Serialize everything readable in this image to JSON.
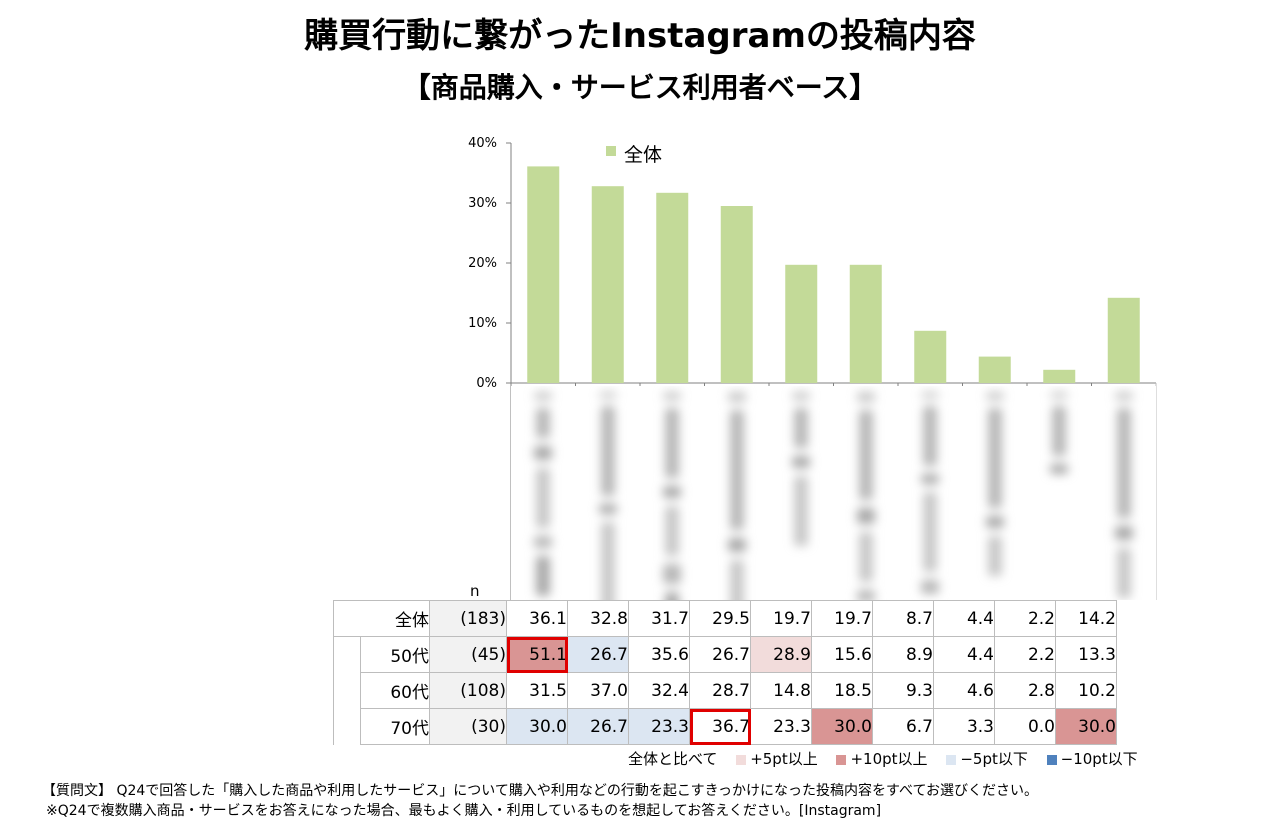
{
  "title": "購買行動に繋がったInstagramの投稿内容",
  "subtitle": "【商品購入・サービス利用者ベース】",
  "chart_data": {
    "type": "bar",
    "categories": [
      "",
      "",
      "",
      "",
      "",
      "",
      "",
      "",
      "",
      ""
    ],
    "series": [
      {
        "name": "全体",
        "values": [
          36.1,
          32.8,
          31.7,
          29.5,
          19.7,
          19.7,
          8.7,
          4.4,
          2.2,
          14.2
        ]
      }
    ],
    "ylim": [
      0,
      40
    ],
    "yticks": [
      "0%",
      "10%",
      "20%",
      "30%",
      "40%"
    ],
    "legend": "top",
    "bar_color": "#c3da98",
    "grid": false
  },
  "table": {
    "n_header": "n",
    "rows": [
      {
        "label": "全体",
        "n": "(183)",
        "values": [
          "36.1",
          "32.8",
          "31.7",
          "29.5",
          "19.7",
          "19.7",
          "8.7",
          "4.4",
          "2.2",
          "14.2"
        ],
        "colors": [
          "",
          "",
          "",
          "",
          "",
          "",
          "",
          "",
          "",
          ""
        ],
        "highlight": [
          false,
          false,
          false,
          false,
          false,
          false,
          false,
          false,
          false,
          false
        ]
      },
      {
        "label": "50代",
        "n": "(45)",
        "values": [
          "51.1",
          "26.7",
          "35.6",
          "26.7",
          "28.9",
          "15.6",
          "8.9",
          "4.4",
          "2.2",
          "13.3"
        ],
        "colors": [
          "#d99594",
          "#dce6f2",
          "",
          "",
          "#f2dcdb",
          "",
          "",
          "",
          "",
          ""
        ],
        "highlight": [
          true,
          false,
          false,
          false,
          false,
          false,
          false,
          false,
          false,
          false
        ]
      },
      {
        "label": "60代",
        "n": "(108)",
        "values": [
          "31.5",
          "37.0",
          "32.4",
          "28.7",
          "14.8",
          "18.5",
          "9.3",
          "4.6",
          "2.8",
          "10.2"
        ],
        "colors": [
          "",
          "",
          "",
          "",
          "",
          "",
          "",
          "",
          "",
          ""
        ],
        "highlight": [
          false,
          false,
          false,
          false,
          false,
          false,
          false,
          false,
          false,
          false
        ]
      },
      {
        "label": "70代",
        "n": "(30)",
        "values": [
          "30.0",
          "26.7",
          "23.3",
          "36.7",
          "23.3",
          "30.0",
          "6.7",
          "3.3",
          "0.0",
          "30.0"
        ],
        "colors": [
          "#dce6f2",
          "#dce6f2",
          "#dce6f2",
          "",
          "",
          "#d99594",
          "",
          "",
          "",
          "#d99594"
        ],
        "highlight": [
          false,
          false,
          false,
          true,
          false,
          false,
          false,
          false,
          false,
          false
        ]
      }
    ]
  },
  "legend_row": {
    "intro": "全体と比べて",
    "items": [
      {
        "label": "+5pt以上",
        "color": "#f2dcdb"
      },
      {
        "label": "+10pt以上",
        "color": "#d99594"
      },
      {
        "label": "−5pt以下",
        "color": "#dce6f2"
      },
      {
        "label": "−10pt以下",
        "color": "#4f81bd"
      }
    ]
  },
  "notes": {
    "line1": "【質問文】 Q24で回答した「購入した商品や利用したサービス」について購入や利用などの行動を起こすきっかけになった投稿内容をすべてお選びください。",
    "line2": "※Q24で複数購入商品・サービスをお答えになった場合、最もよく購入・利用しているものを想起してお答えください。[Instagram]"
  }
}
